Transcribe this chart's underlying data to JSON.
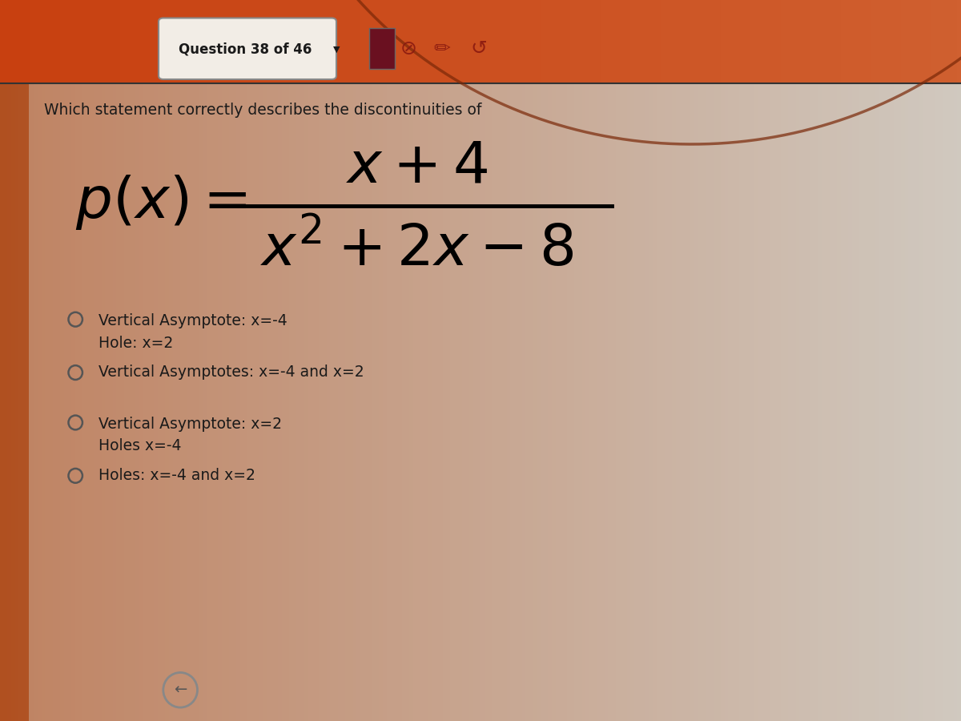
{
  "header_text": "Question 38 of 46",
  "header_bg_left": "#c8501a",
  "header_bg_right": "#d4704a",
  "main_bg_left": "#b8652a",
  "main_bg_right": "#d8cfc8",
  "content_area_color": "#ddd5cc",
  "question_text": "Which statement correctly describes the discontinuities of",
  "question_fontsize": 14,
  "text_color": "#1a1a1a",
  "circle_color": "#555555",
  "formula_color": "#000000",
  "options": [
    {
      "lines": [
        "Vertical Asymptote: x=-4",
        "Hole: x=2"
      ]
    },
    {
      "lines": [
        "Vertical Asymptotes: x=-4 and x=2"
      ]
    },
    {
      "lines": [
        "Vertical Asymptote: x=2",
        "Holes x=-4"
      ]
    },
    {
      "lines": [
        "Holes: x=-4 and x=2"
      ]
    }
  ]
}
